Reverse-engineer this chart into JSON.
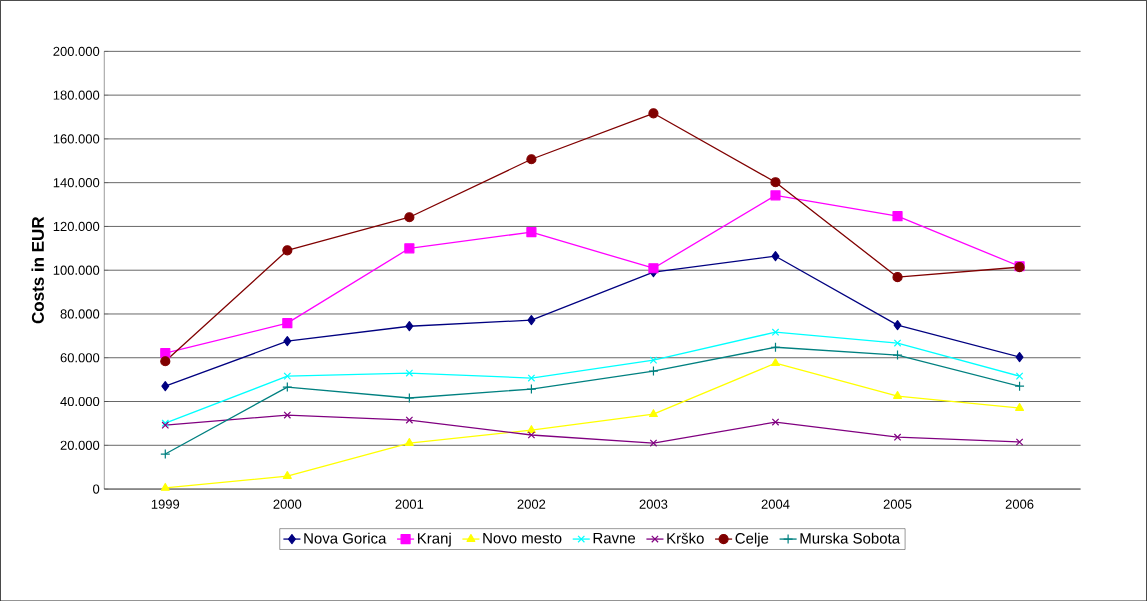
{
  "chart_data": {
    "type": "line",
    "ylabel": "Costs in EUR",
    "categories": [
      "1999",
      "2000",
      "2001",
      "2002",
      "2003",
      "2004",
      "2005",
      "2006"
    ],
    "ylim": [
      0,
      200000
    ],
    "yticks": [
      {
        "value": 0,
        "label": "0"
      },
      {
        "value": 20000,
        "label": "20.000"
      },
      {
        "value": 40000,
        "label": "40.000"
      },
      {
        "value": 60000,
        "label": "60.000"
      },
      {
        "value": 80000,
        "label": "80.000"
      },
      {
        "value": 100000,
        "label": "100.000"
      },
      {
        "value": 120000,
        "label": "120.000"
      },
      {
        "value": 140000,
        "label": "140.000"
      },
      {
        "value": 160000,
        "label": "160.000"
      },
      {
        "value": 180000,
        "label": "180.000"
      },
      {
        "value": 200000,
        "label": "200.000"
      }
    ],
    "grid": "y",
    "legend": "bottom",
    "series": [
      {
        "name": "Nova Gorica",
        "color": "#000080",
        "marker": "diamond",
        "values": [
          47000,
          67600,
          74400,
          77200,
          99100,
          106400,
          74900,
          60300
        ]
      },
      {
        "name": "Kranj",
        "color": "#ff00ff",
        "marker": "square",
        "values": [
          62100,
          75800,
          110000,
          117400,
          100900,
          134200,
          124700,
          101800
        ]
      },
      {
        "name": "Novo mesto",
        "color": "#ffff00",
        "marker": "triangle",
        "values": [
          500,
          5900,
          21000,
          26900,
          34200,
          57500,
          42500,
          37000
        ]
      },
      {
        "name": "Ravne",
        "color": "#00ffff",
        "marker": "cross",
        "values": [
          30100,
          51600,
          53000,
          50700,
          58900,
          71700,
          66700,
          51600
        ]
      },
      {
        "name": "Krško",
        "color": "#800080",
        "marker": "cross",
        "values": [
          29200,
          33800,
          31500,
          24700,
          21000,
          30600,
          23700,
          21500
        ]
      },
      {
        "name": "Celje",
        "color": "#800000",
        "marker": "circle",
        "values": [
          58400,
          109100,
          124200,
          150700,
          171700,
          140200,
          96800,
          101400
        ]
      },
      {
        "name": "Murska Sobota",
        "color": "#008080",
        "marker": "plus",
        "values": [
          16000,
          46600,
          41600,
          45700,
          53900,
          64800,
          61200,
          47000
        ]
      }
    ]
  }
}
